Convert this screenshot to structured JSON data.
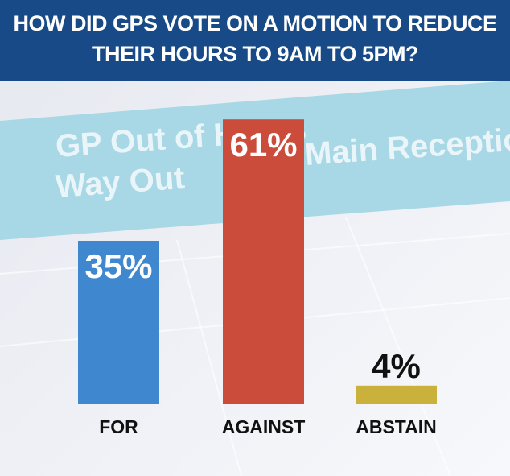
{
  "chart_data": {
    "type": "bar",
    "title": "HOW DID GPS VOTE ON A MOTION TO REDUCE THEIR HOURS TO 9AM TO 5PM?",
    "categories": [
      "FOR",
      "AGAINST",
      "ABSTAIN"
    ],
    "values": [
      35,
      61,
      4
    ],
    "value_labels": [
      "35%",
      "61%",
      "4%"
    ],
    "colors": [
      "#3f87cf",
      "#cc4c3b",
      "#c9b13b"
    ]
  },
  "sign_texts": [
    "GP Out of Hours",
    "Way Out",
    "Main Reception"
  ]
}
